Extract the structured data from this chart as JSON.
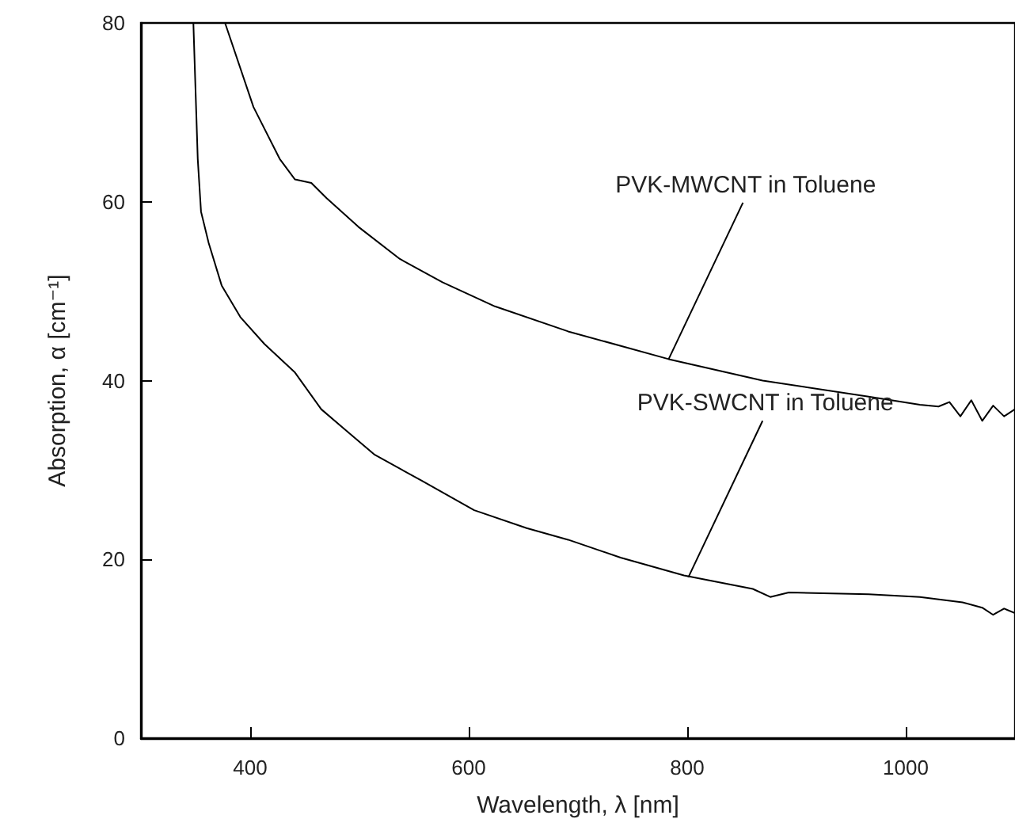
{
  "chart_data": {
    "type": "line",
    "xlabel": "Wavelength, λ [nm]",
    "ylabel": "Absorption, α [cm⁻¹]",
    "xlim": [
      300,
      1100
    ],
    "xticks": [
      400,
      600,
      800,
      1000
    ],
    "ylim": [
      0,
      80
    ],
    "yticks": [
      0,
      20,
      40,
      60,
      80
    ],
    "grid": false,
    "marker": "none",
    "line_style": "solid",
    "series": [
      {
        "color": "#000000",
        "x": [
          377,
          403,
          427,
          441,
          456,
          470,
          499,
          537,
          576,
          624,
          691,
          783,
          869,
          966,
          1013,
          1030,
          1040,
          1050,
          1060,
          1070,
          1080,
          1090,
          1100
        ],
        "values": [
          80,
          70.6,
          64.8,
          62.5,
          62.1,
          60.4,
          57.2,
          53.6,
          51,
          48.3,
          45.5,
          42.4,
          40,
          38.2,
          37.3,
          37.1,
          37.6,
          36,
          37.8,
          35.5,
          37.2,
          36,
          36.8
        ]
      },
      {
        "color": "#000000",
        "x": [
          348,
          352,
          355,
          362,
          374,
          391,
          413,
          441,
          465,
          485,
          514,
          557,
          605,
          653,
          691,
          739,
          797,
          860,
          876,
          893,
          966,
          1013,
          1052,
          1070,
          1080,
          1090,
          1100
        ],
        "values": [
          80,
          64.8,
          58.9,
          55.4,
          50.6,
          47.1,
          44.1,
          40.9,
          36.8,
          34.7,
          31.7,
          28.8,
          25.5,
          23.5,
          22.2,
          20.2,
          18.2,
          16.7,
          15.8,
          16.3,
          16.1,
          15.8,
          15.2,
          14.6,
          13.8,
          14.5,
          14
        ]
      }
    ],
    "annotations": [
      {
        "text": "PVK-MWCNT in Toluene",
        "x": 783,
        "y": 42.4
      },
      {
        "text": "PVK-SWCNT in Toluene",
        "x": 801,
        "y": 18
      }
    ]
  }
}
